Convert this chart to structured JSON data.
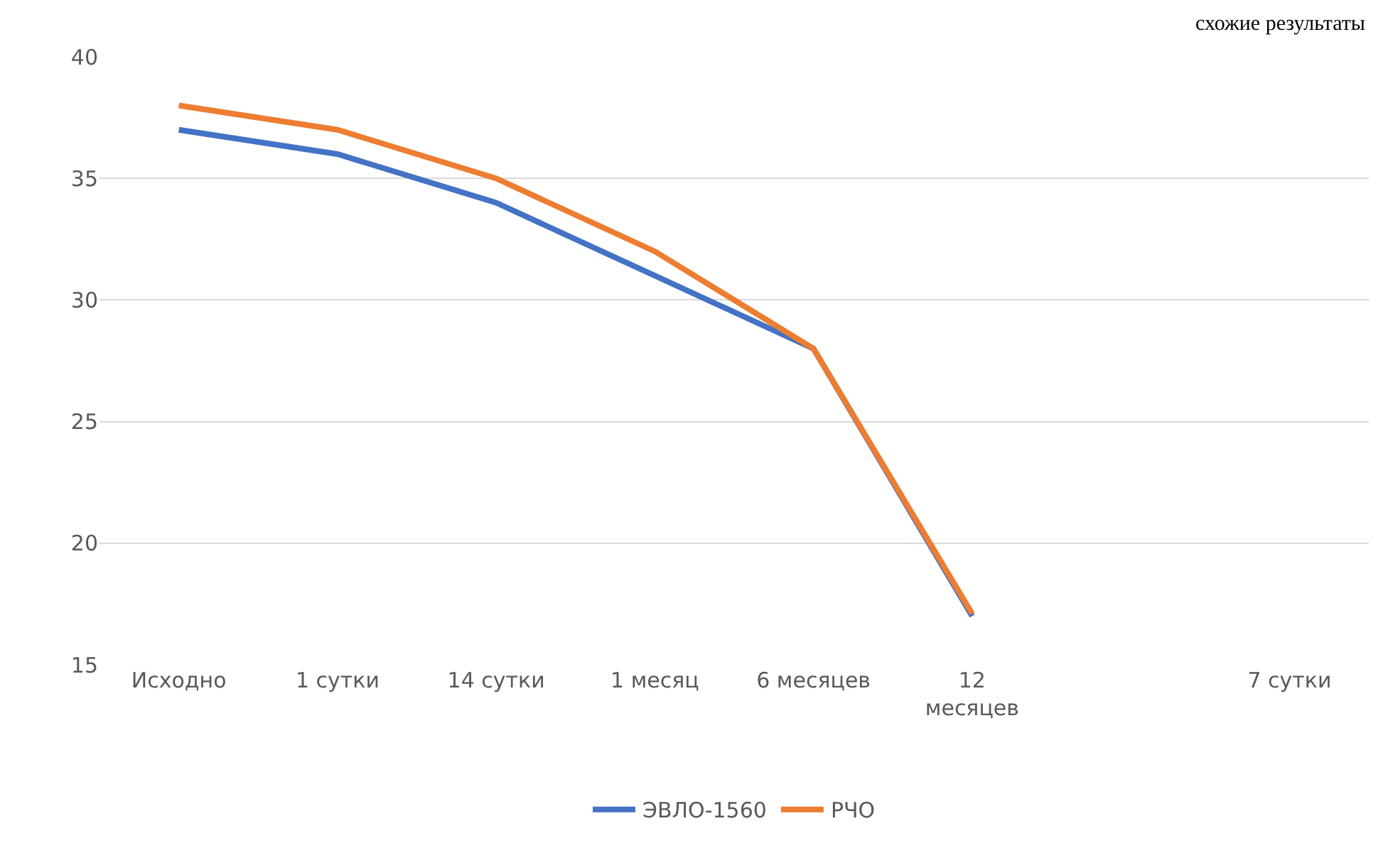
{
  "chart_data": {
    "type": "line",
    "categories": [
      "Исходно",
      "1 сутки",
      "14 сутки",
      "1 месяц",
      "6 месяцев",
      "12 месяцев",
      null,
      "7 сутки"
    ],
    "series": [
      {
        "name": "ЭВЛО-1560",
        "color": "#4472c4",
        "values": [
          37,
          36,
          34,
          31,
          28,
          17,
          null,
          null
        ]
      },
      {
        "name": "РЧО",
        "color": "#ed7d31",
        "values": [
          38,
          37,
          35,
          32,
          28,
          17.1,
          null,
          null
        ]
      }
    ],
    "ylim": [
      15,
      40
    ],
    "yticks": [
      15,
      20,
      25,
      30,
      35,
      40
    ],
    "grid": "y",
    "legend": "bottom",
    "marker": "none",
    "line_style": "solid",
    "annotations": [
      "схожие результаты"
    ]
  }
}
